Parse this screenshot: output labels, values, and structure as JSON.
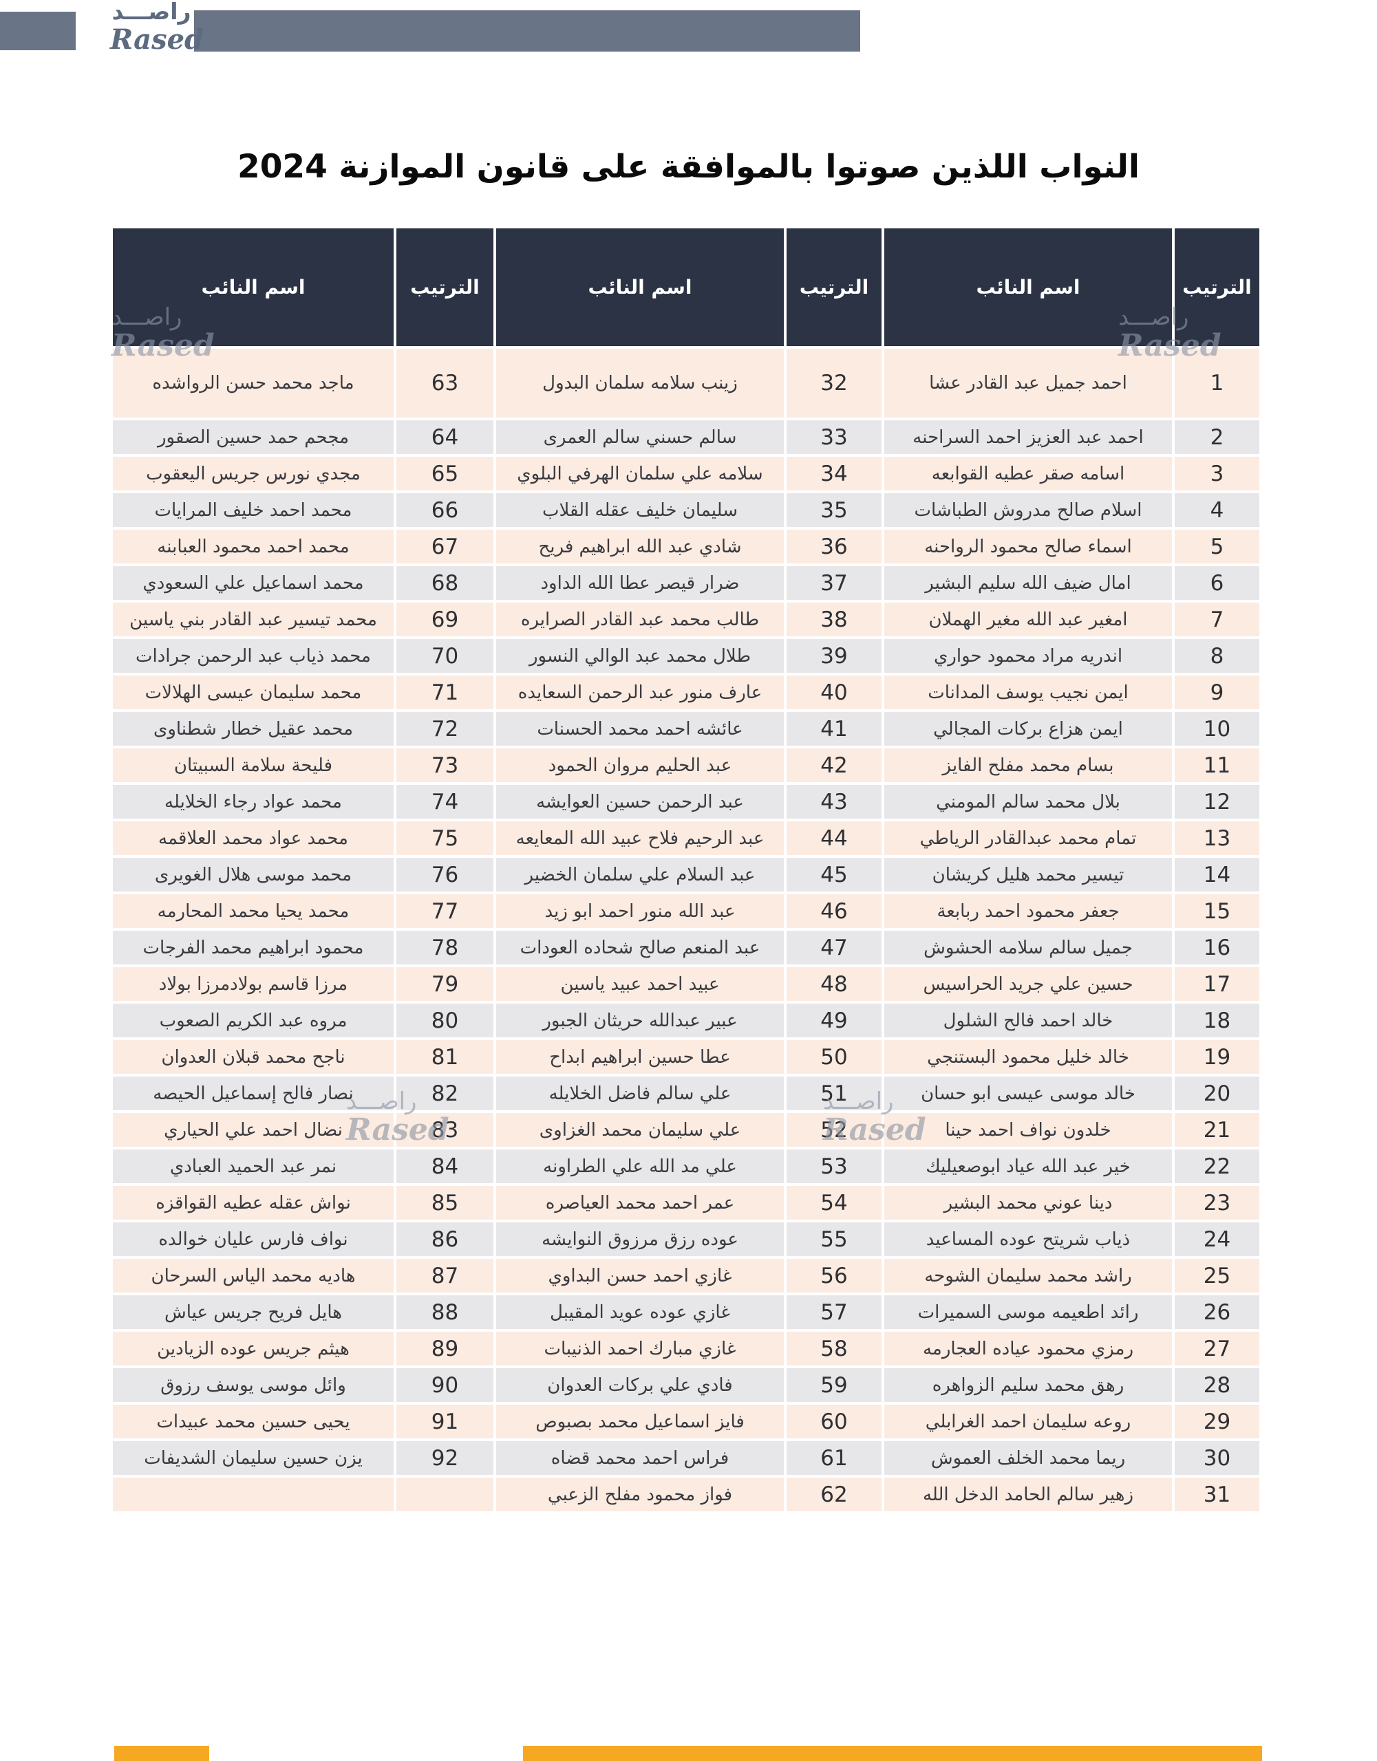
{
  "logo": {
    "arabic": "راصـــد",
    "latin": "Rased"
  },
  "watermark": {
    "arabic": "راصـــد",
    "latin": "Rased"
  },
  "title": "النواب اللذين صوتوا بالموافقة على قانون الموازنة 2024",
  "colors": {
    "header_bg": "#2b3344",
    "row_pink": "#fcebe0",
    "row_gray": "#e7e7e9",
    "brand_slate": "#6a7487",
    "accent_orange": "#f7a823"
  },
  "table": {
    "header_name": "اسم النائب",
    "header_rank": "الترتيب",
    "columns": [
      {
        "entries": [
          {
            "rank": 63,
            "name": "ماجد محمد حسن الرواشده"
          },
          {
            "rank": 64,
            "name": "مجحم حمد حسين الصقور"
          },
          {
            "rank": 65,
            "name": "مجدي نورس جريس اليعقوب"
          },
          {
            "rank": 66,
            "name": "محمد احمد خليف المرايات"
          },
          {
            "rank": 67,
            "name": "محمد احمد محمود العبابنه"
          },
          {
            "rank": 68,
            "name": "محمد اسماعيل علي السعودي"
          },
          {
            "rank": 69,
            "name": "محمد تيسير عبد القادر بني ياسين"
          },
          {
            "rank": 70,
            "name": "محمد ذياب عبد الرحمن جرادات"
          },
          {
            "rank": 71,
            "name": "محمد سليمان عيسى الهلالات"
          },
          {
            "rank": 72,
            "name": "محمد عقيل خطار شطناوى"
          },
          {
            "rank": 73,
            "name": "فليحة سلامة السبيتان"
          },
          {
            "rank": 74,
            "name": "محمد عواد رجاء الخلايله"
          },
          {
            "rank": 75,
            "name": "محمد عواد محمد العلاقمه"
          },
          {
            "rank": 76,
            "name": "محمد موسى هلال الغويرى"
          },
          {
            "rank": 77,
            "name": "محمد يحيا محمد المحارمه"
          },
          {
            "rank": 78,
            "name": "محمود ابراهيم محمد الفرجات"
          },
          {
            "rank": 79,
            "name": "مرزا قاسم بولادمرزا بولاد"
          },
          {
            "rank": 80,
            "name": "مروه عبد الكريم الصعوب"
          },
          {
            "rank": 81,
            "name": "ناجح محمد قبلان العدوان"
          },
          {
            "rank": 82,
            "name": "نصار فالح إسماعيل الحيصه"
          },
          {
            "rank": 83,
            "name": "نضال احمد علي الحياري"
          },
          {
            "rank": 84,
            "name": "نمر عبد الحميد العبادي"
          },
          {
            "rank": 85,
            "name": "نواش عقله عطيه القواقزه"
          },
          {
            "rank": 86,
            "name": "نواف فارس عليان خوالده"
          },
          {
            "rank": 87,
            "name": "هاديه محمد الياس السرحان"
          },
          {
            "rank": 88,
            "name": "هايل فريح جريس عياش"
          },
          {
            "rank": 89,
            "name": "هيثم جريس عوده الزيادين"
          },
          {
            "rank": 90,
            "name": "وائل موسى يوسف رزوق"
          },
          {
            "rank": 91,
            "name": "يحيى حسين محمد عبيدات"
          },
          {
            "rank": 92,
            "name": "يزن حسين سليمان الشديفات"
          },
          {
            "rank": "",
            "name": ""
          }
        ]
      },
      {
        "entries": [
          {
            "rank": 32,
            "name": "زينب سلامه سلمان البدول"
          },
          {
            "rank": 33,
            "name": "سالم حسني سالم العمرى"
          },
          {
            "rank": 34,
            "name": "سلامه علي سلمان الهرفي البلوي"
          },
          {
            "rank": 35,
            "name": "سليمان خليف عقله القلاب"
          },
          {
            "rank": 36,
            "name": "شادي عبد الله ابراهيم فريح"
          },
          {
            "rank": 37,
            "name": "ضرار قيصر عطا الله الداود"
          },
          {
            "rank": 38,
            "name": "طالب محمد عبد القادر الصرايره"
          },
          {
            "rank": 39,
            "name": "طلال محمد عبد الوالي النسور"
          },
          {
            "rank": 40,
            "name": "عارف منور عبد الرحمن السعايده"
          },
          {
            "rank": 41,
            "name": "عائشه احمد محمد الحسنات"
          },
          {
            "rank": 42,
            "name": "عبد الحليم مروان الحمود"
          },
          {
            "rank": 43,
            "name": "عبد الرحمن حسين العوايشه"
          },
          {
            "rank": 44,
            "name": "عبد الرحيم فلاح عبيد الله المعايعه"
          },
          {
            "rank": 45,
            "name": "عبد السلام علي سلمان الخضير"
          },
          {
            "rank": 46,
            "name": "عبد الله منور احمد ابو زيد"
          },
          {
            "rank": 47,
            "name": "عبد المنعم صالح شحاده العودات"
          },
          {
            "rank": 48,
            "name": "عبيد احمد عبيد ياسين"
          },
          {
            "rank": 49,
            "name": "عبير عبدالله حريثان الجبور"
          },
          {
            "rank": 50,
            "name": "عطا حسين ابراهيم ابداح"
          },
          {
            "rank": 51,
            "name": "علي سالم فاضل الخلايله"
          },
          {
            "rank": 52,
            "name": "علي سليمان محمد الغزاوى"
          },
          {
            "rank": 53,
            "name": "علي مد الله علي الطراونه"
          },
          {
            "rank": 54,
            "name": "عمر احمد محمد العياصره"
          },
          {
            "rank": 55,
            "name": "عوده رزق مرزوق النوايشه"
          },
          {
            "rank": 56,
            "name": "غازي احمد حسن البداوي"
          },
          {
            "rank": 57,
            "name": "غازي عوده عويد المقيبل"
          },
          {
            "rank": 58,
            "name": "غازي مبارك احمد الذنيبات"
          },
          {
            "rank": 59,
            "name": "فادي علي بركات العدوان"
          },
          {
            "rank": 60,
            "name": "فايز اسماعيل محمد بصبوص"
          },
          {
            "rank": 61,
            "name": "فراس احمد محمد قضاه"
          },
          {
            "rank": 62,
            "name": "فواز محمود مفلح الزعبي"
          }
        ]
      },
      {
        "entries": [
          {
            "rank": 1,
            "name": "احمد جميل عبد القادر عشا"
          },
          {
            "rank": 2,
            "name": "احمد عبد العزيز احمد السراحنه"
          },
          {
            "rank": 3,
            "name": "اسامه صقر عطيه القوابعه"
          },
          {
            "rank": 4,
            "name": "اسلام صالح مدروش الطباشات"
          },
          {
            "rank": 5,
            "name": "اسماء صالح محمود الرواحنه"
          },
          {
            "rank": 6,
            "name": "امال ضيف الله سليم البشير"
          },
          {
            "rank": 7,
            "name": "امغير عبد الله مغير الهملان"
          },
          {
            "rank": 8,
            "name": "اندريه مراد محمود حواري"
          },
          {
            "rank": 9,
            "name": "ايمن نجيب يوسف المدانات"
          },
          {
            "rank": 10,
            "name": "ايمن هزاع بركات المجالي"
          },
          {
            "rank": 11,
            "name": "بسام محمد مفلح الفايز"
          },
          {
            "rank": 12,
            "name": "بلال محمد سالم المومني"
          },
          {
            "rank": 13,
            "name": "تمام محمد عبدالقادر الرياطي"
          },
          {
            "rank": 14,
            "name": "تيسير محمد هليل كريشان"
          },
          {
            "rank": 15,
            "name": "جعفر محمود احمد ربابعة"
          },
          {
            "rank": 16,
            "name": "جميل سالم سلامه الحشوش"
          },
          {
            "rank": 17,
            "name": "حسين علي جريد الحراسيس"
          },
          {
            "rank": 18,
            "name": "خالد احمد فالح الشلول"
          },
          {
            "rank": 19,
            "name": "خالد خليل محمود البستنجي"
          },
          {
            "rank": 20,
            "name": "خالد موسى عيسى ابو حسان"
          },
          {
            "rank": 21,
            "name": "خلدون نواف احمد حينا"
          },
          {
            "rank": 22,
            "name": "خير عبد الله عياد ابوصعيليك"
          },
          {
            "rank": 23,
            "name": "دينا عوني محمد البشير"
          },
          {
            "rank": 24,
            "name": "ذياب شريتح عوده المساعيد"
          },
          {
            "rank": 25,
            "name": "راشد محمد سليمان الشوحه"
          },
          {
            "rank": 26,
            "name": "رائد اطعيمه موسى السميرات"
          },
          {
            "rank": 27,
            "name": "رمزي محمود عياده العجارمه"
          },
          {
            "rank": 28,
            "name": "رهق محمد سليم الزواهره"
          },
          {
            "rank": 29,
            "name": "روعه سليمان احمد الغرابلي"
          },
          {
            "rank": 30,
            "name": "ريما محمد الخلف العموش"
          },
          {
            "rank": 31,
            "name": "زهير سالم الحامد الدخل الله"
          }
        ]
      }
    ]
  }
}
